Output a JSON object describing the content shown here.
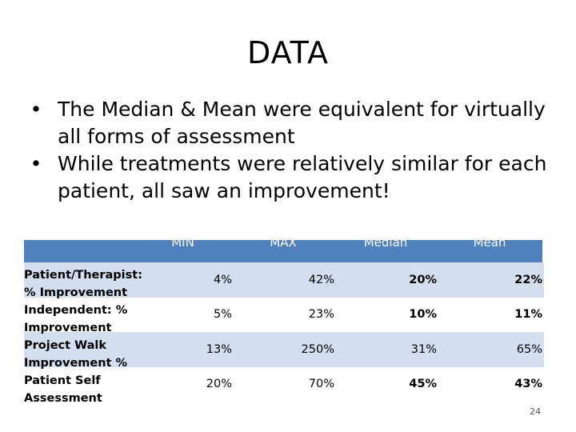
{
  "title": "DATA",
  "bullets": [
    "The Median & Mean were equivalent for virtually all forms of assessment",
    "While treatments were relatively similar for each patient, all saw an improvement!"
  ],
  "table": {
    "headers": [
      "",
      "MIN",
      "MAX",
      "Median",
      "Mean"
    ],
    "label_lines": [
      "Patient/Therapist:",
      "% Improvement",
      "Independent: %",
      "Improvement",
      "Project Walk",
      "Improvement %",
      "Patient Self",
      "Assessment"
    ],
    "rows": [
      {
        "label": "Patient/Therapist: % Improvement",
        "min": "4%",
        "max": "42%",
        "median": "20%",
        "mean": "22%"
      },
      {
        "label": "Independent: % Improvement",
        "min": "5%",
        "max": "23%",
        "median": "10%",
        "mean": "11%"
      },
      {
        "label": "Project Walk Improvement %",
        "min": "13%",
        "max": "250%",
        "median": "31%",
        "mean": "65%"
      },
      {
        "label": "Patient Self Assessment",
        "min": "20%",
        "max": "70%",
        "median": "45%",
        "mean": "43%"
      }
    ]
  },
  "page_number": "24",
  "colors": {
    "header": "#4f81bd",
    "row_alt": "#d3dfee"
  }
}
